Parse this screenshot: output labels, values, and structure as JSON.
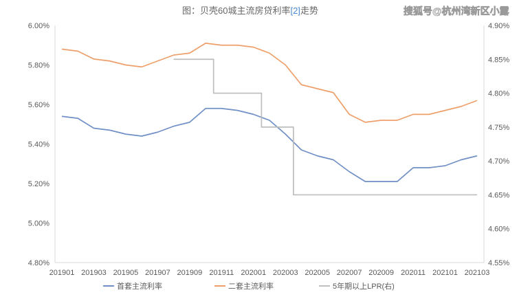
{
  "header": {
    "title_prefix": "图：贝壳60城主流房贷利率",
    "title_bracket": "[2]",
    "title_suffix": "走势",
    "watermark": "搜狐号@杭州湾新区小露"
  },
  "colors": {
    "first_home": "#6f8fc6",
    "second_home": "#ee9f69",
    "lpr": "#bdbdbd",
    "tick_text": "#595959",
    "axis": "#d9d9d9"
  },
  "chart_data": {
    "type": "line",
    "title": "图：贝壳60城主流房贷利率[2]走势",
    "x": [
      "201901",
      "201902",
      "201903",
      "201904",
      "201905",
      "201906",
      "201907",
      "201908",
      "201909",
      "201910",
      "201911",
      "201912",
      "202001",
      "202002",
      "202003",
      "202004",
      "202005",
      "202006",
      "202007",
      "202008",
      "202009",
      "202010",
      "202011",
      "202012",
      "202101",
      "202102",
      "202103"
    ],
    "x_tick_labels": [
      "201901",
      "201903",
      "201905",
      "201907",
      "201909",
      "201911",
      "202001",
      "202003",
      "202005",
      "202007",
      "202009",
      "202011",
      "202101",
      "202103"
    ],
    "y_left_ticks": [
      "4.80%",
      "5.00%",
      "5.20%",
      "5.40%",
      "5.60%",
      "5.80%",
      "6.00%"
    ],
    "y_right_ticks": [
      "4.55%",
      "4.60%",
      "4.65%",
      "4.70%",
      "4.75%",
      "4.80%",
      "4.85%",
      "4.90%"
    ],
    "ylim_left": [
      4.8,
      6.0
    ],
    "ylim_right": [
      4.55,
      4.9
    ],
    "legend_position": "bottom",
    "series": [
      {
        "name": "首套主流利率",
        "axis": "left",
        "values": [
          5.54,
          5.53,
          5.48,
          5.47,
          5.45,
          5.44,
          5.46,
          5.49,
          5.51,
          5.58,
          5.58,
          5.57,
          5.55,
          5.52,
          5.45,
          5.37,
          5.34,
          5.32,
          5.26,
          5.21,
          5.21,
          5.21,
          5.28,
          5.28,
          5.29,
          5.32,
          5.34
        ]
      },
      {
        "name": "二套主流利率",
        "axis": "left",
        "values": [
          5.88,
          5.87,
          5.83,
          5.82,
          5.8,
          5.79,
          5.82,
          5.85,
          5.86,
          5.91,
          5.9,
          5.9,
          5.89,
          5.86,
          5.8,
          5.7,
          5.68,
          5.66,
          5.55,
          5.51,
          5.52,
          5.52,
          5.55,
          5.55,
          5.57,
          5.59,
          5.62
        ]
      },
      {
        "name": "5年期以上LPR(右)",
        "axis": "right",
        "values": [
          null,
          null,
          null,
          null,
          null,
          null,
          null,
          4.85,
          4.85,
          4.85,
          4.8,
          4.8,
          4.8,
          4.75,
          4.75,
          4.65,
          4.65,
          4.65,
          4.65,
          4.65,
          4.65,
          4.65,
          4.65,
          4.65,
          4.65,
          4.65,
          4.65
        ]
      }
    ]
  }
}
